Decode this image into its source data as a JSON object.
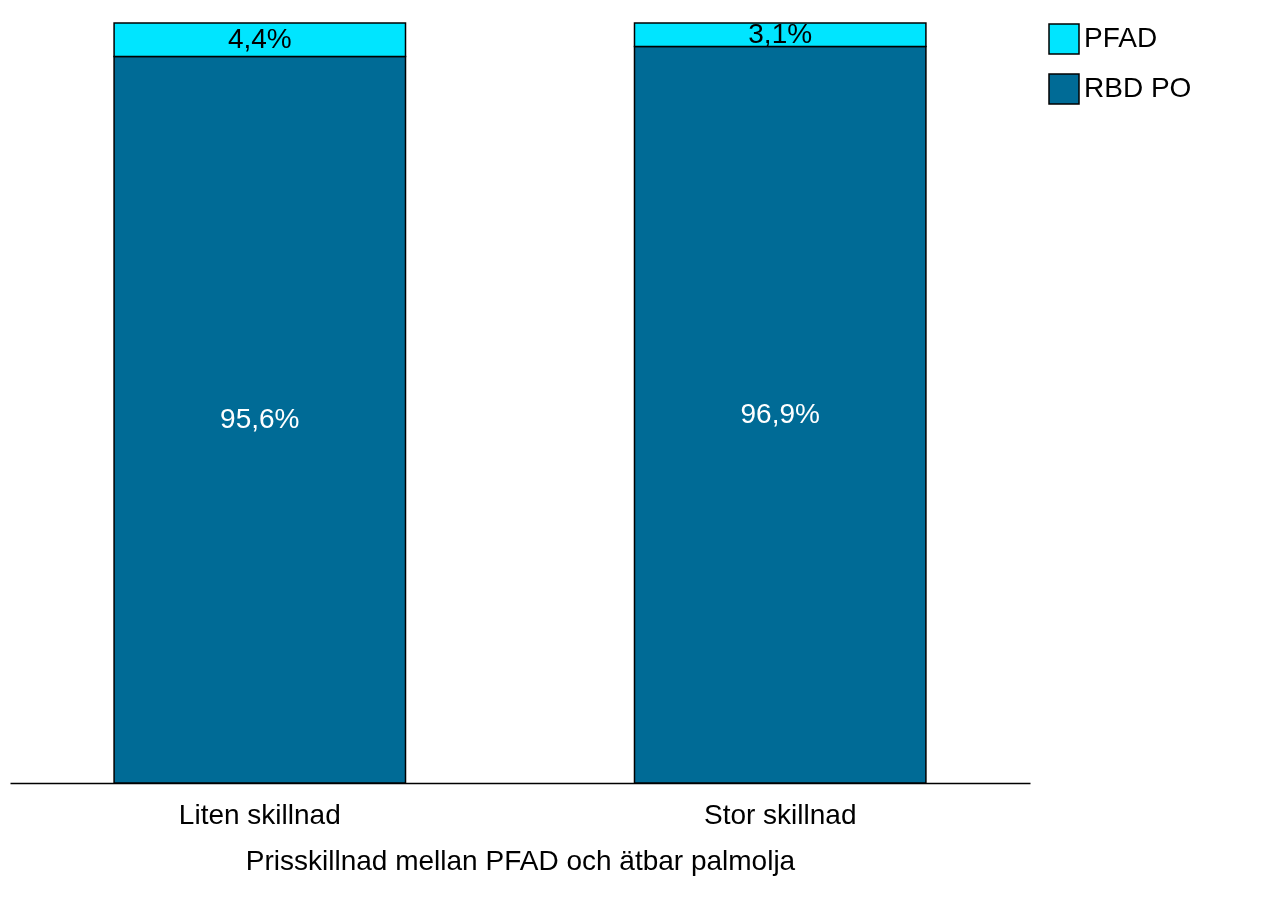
{
  "chart_data": {
    "type": "bar",
    "stacked": true,
    "xlabel": "Prisskillnad mellan PFAD och ätbar palmolja",
    "categories": [
      "Liten skillnad",
      "Stor skillnad"
    ],
    "series": [
      {
        "name": "RBD PO",
        "color": "#006b96",
        "values": [
          95.6,
          96.9
        ],
        "value_labels": [
          "95,6%",
          "96,9%"
        ]
      },
      {
        "name": "PFAD",
        "color": "#00e5ff",
        "values": [
          4.4,
          3.1
        ],
        "value_labels": [
          "4,4%",
          "3,1%"
        ]
      }
    ],
    "ylim": [
      0,
      100
    ],
    "tick_labels": "x",
    "grid": false,
    "legend": "top right"
  }
}
